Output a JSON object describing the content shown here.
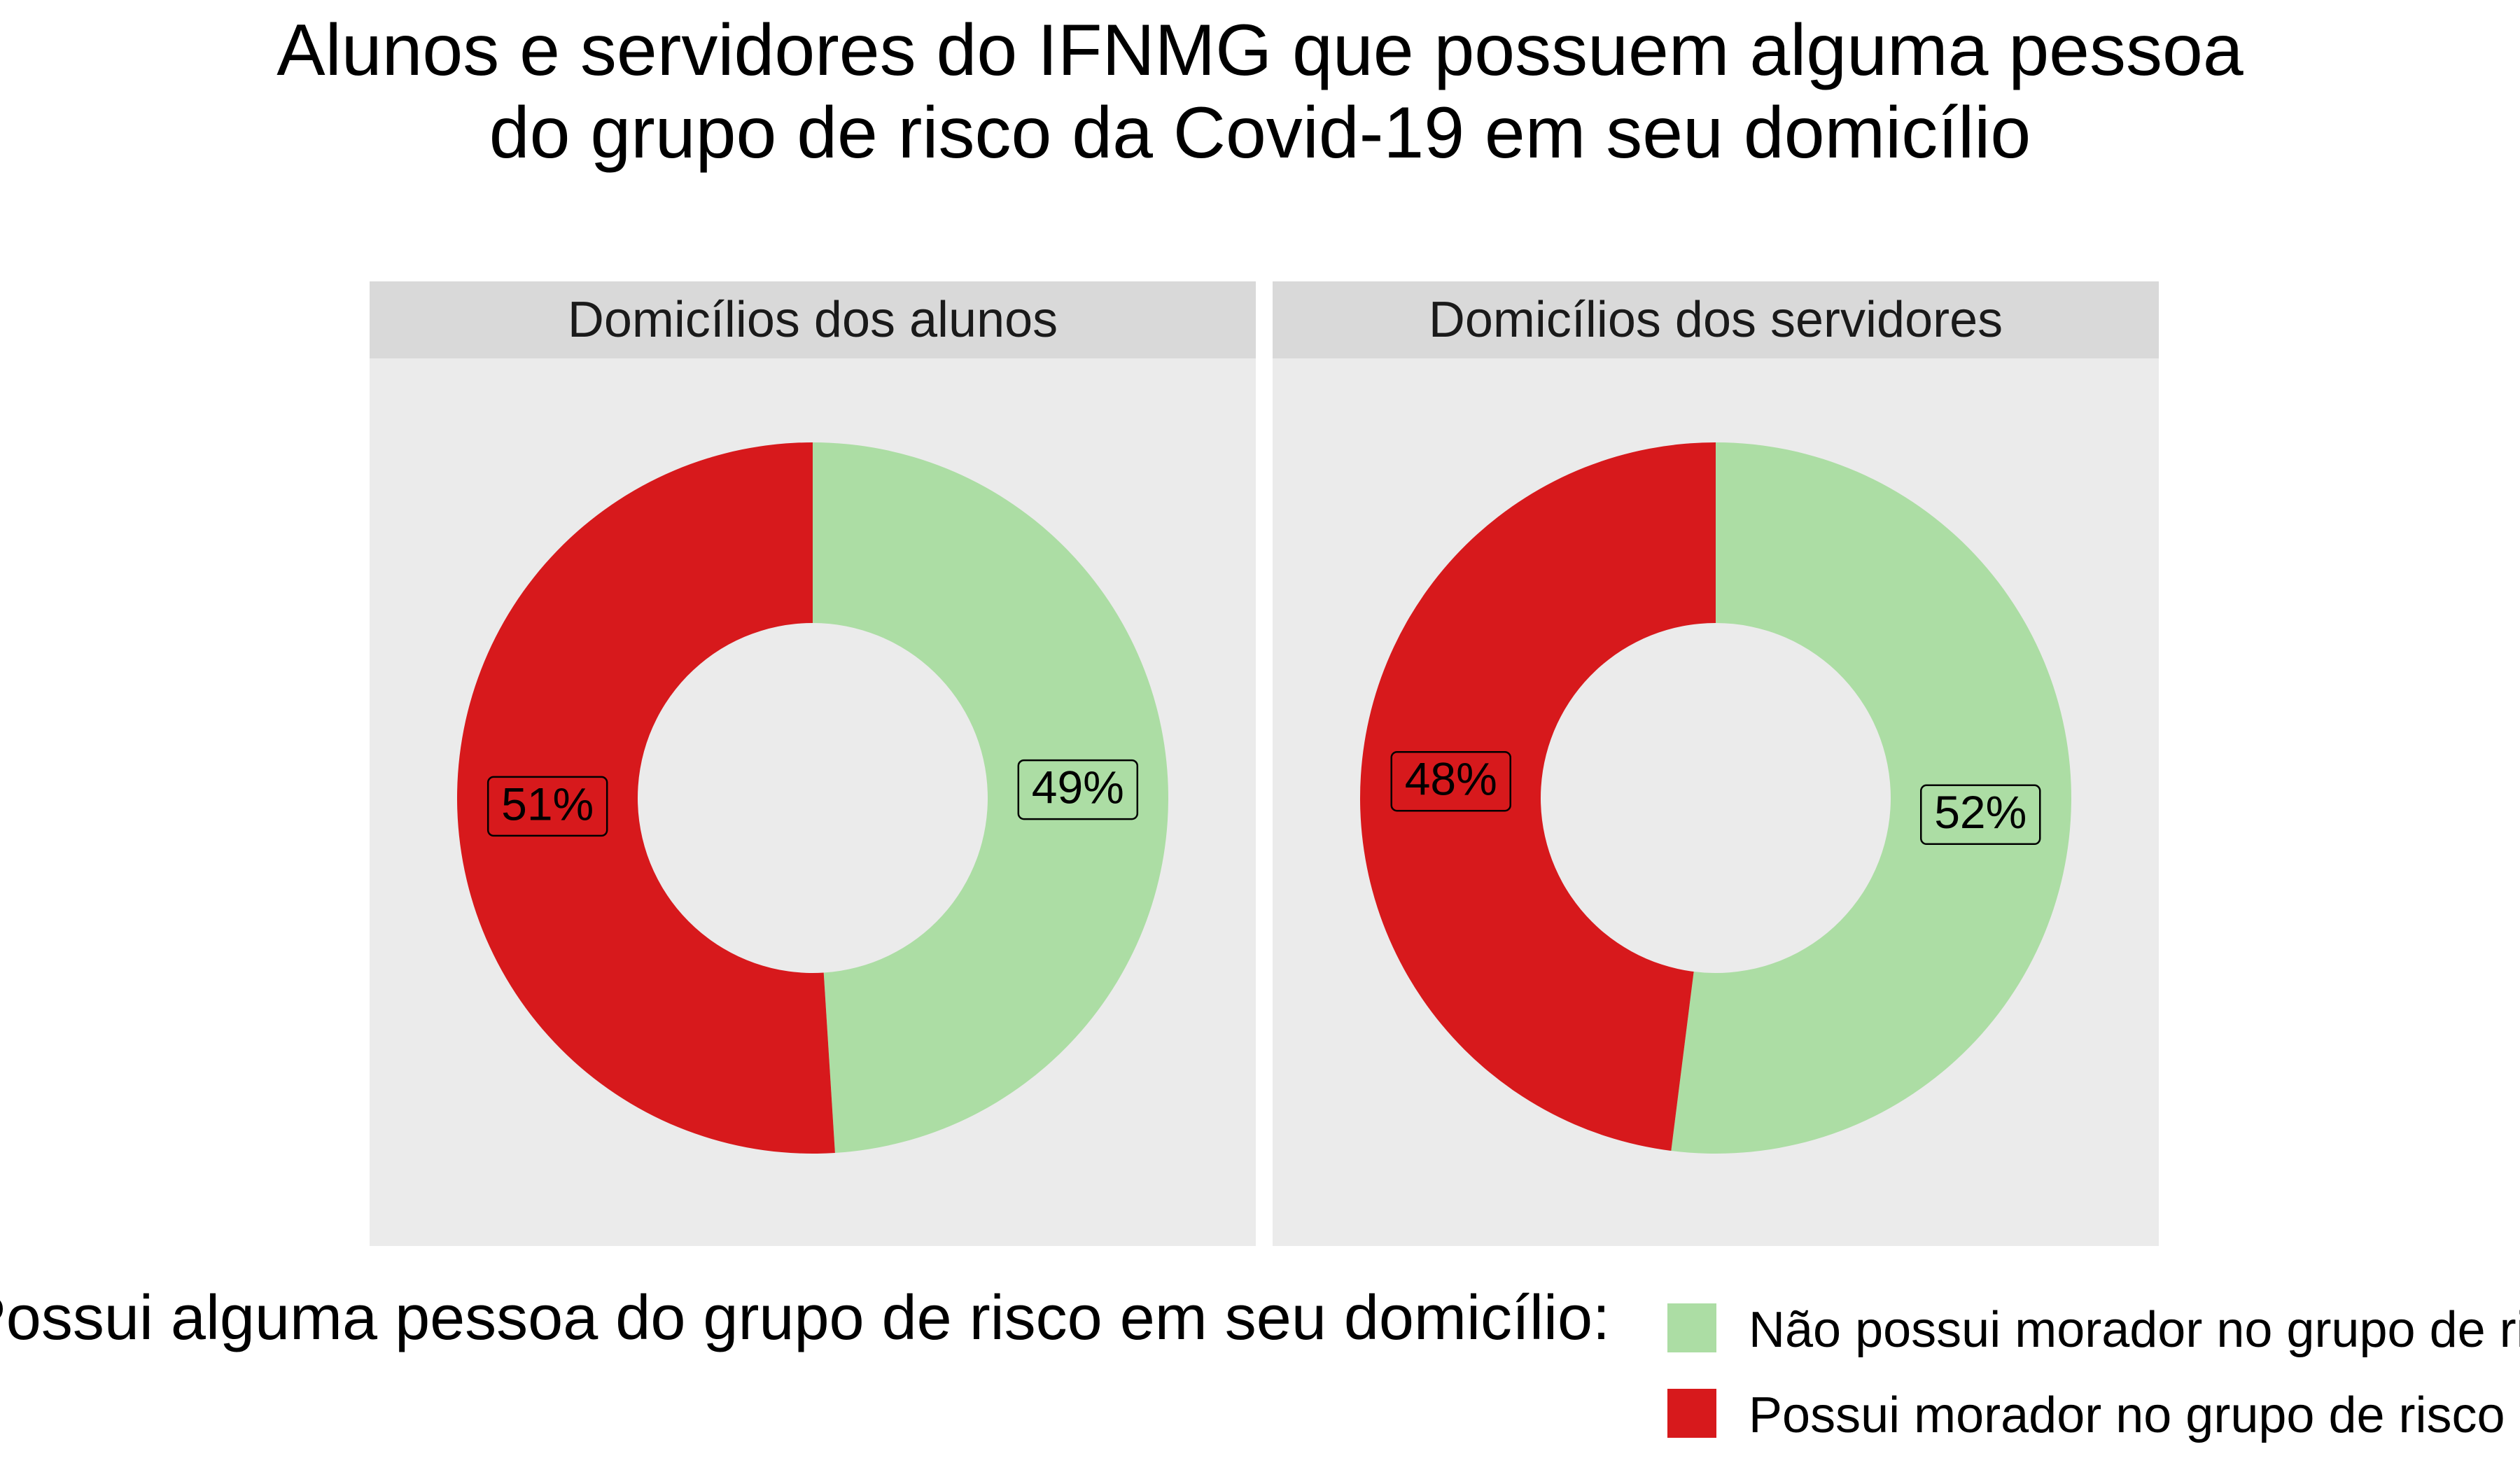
{
  "chart_data": {
    "type": "pie",
    "variant": "donut",
    "title_lines": [
      "Alunos e servidores do IFNMG que possuem alguma pessoa",
      "do grupo de risco da Covid-19 em seu domicílio"
    ],
    "categories": [
      "Não possui morador no grupo de risco",
      "Possui morador no grupo de risco"
    ],
    "colors": [
      "#acdda4",
      "#d7191c"
    ],
    "panels": [
      {
        "name": "Domicílios dos alunos",
        "values": [
          49,
          51
        ],
        "labels": [
          "49%",
          "51%"
        ]
      },
      {
        "name": "Domicílios dos servidores",
        "values": [
          52,
          48
        ],
        "labels": [
          "52%",
          "48%"
        ]
      }
    ],
    "legend": {
      "title": "Possui alguma pessoa do grupo de risco em seu domicílio:",
      "position": "bottom",
      "entries": [
        "Não possui morador no grupo de risco",
        "Possui morador no grupo de risco"
      ]
    }
  }
}
